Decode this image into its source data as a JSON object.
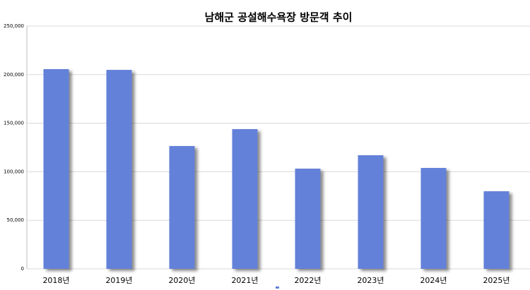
{
  "chart_data": {
    "type": "bar",
    "title": "남해군 공설해수욕장 방문객 추이",
    "categories": [
      "2018년",
      "2019년",
      "2020년",
      "2021년",
      "2022년",
      "2023년",
      "2024년",
      "2025년"
    ],
    "values": [
      205700,
      204900,
      126500,
      143900,
      103200,
      117000,
      103900,
      79900
    ],
    "color": "#6381d9",
    "ylim": [
      0,
      250000
    ],
    "yticks": [
      0,
      {
        "value": 50000,
        "label": "50,000"
      },
      {
        "value": 100000,
        "label": "100,000"
      },
      {
        "value": 150000,
        "label": "150,000"
      },
      {
        "value": 200000,
        "label": "200,000"
      },
      {
        "value": 250000,
        "label": "250,000"
      }
    ],
    "grid": true
  }
}
